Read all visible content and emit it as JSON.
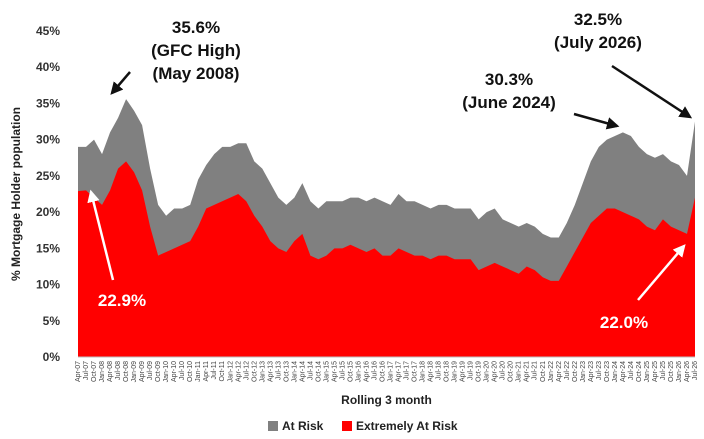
{
  "chart_data": {
    "type": "area",
    "stacked": false,
    "xlabel": "Rolling 3 month",
    "ylabel": "% Mortgage Holder population",
    "ylim": [
      0,
      45
    ],
    "yticks": [
      "0%",
      "5%",
      "10%",
      "15%",
      "20%",
      "25%",
      "30%",
      "35%",
      "40%",
      "45%"
    ],
    "ytick_values": [
      0,
      5,
      10,
      15,
      20,
      25,
      30,
      35,
      40,
      45
    ],
    "grid": false,
    "legend_position": "bottom",
    "x_tick_labels": [
      "Apr-07",
      "Jul-07",
      "Oct-07",
      "Jan-08",
      "Apr-08",
      "Jul-08",
      "Oct-08",
      "Jan-09",
      "Apr-09",
      "Jul-09",
      "Oct-09",
      "Jan-10",
      "Apr-10",
      "Jul-10",
      "Oct-10",
      "Jan-11",
      "Apr-11",
      "Jul-11",
      "Oct-11",
      "Jan-12",
      "Apr-12",
      "Jul-12",
      "Oct-12",
      "Jan-13",
      "Apr-13",
      "Jul-13",
      "Oct-13",
      "Jan-14",
      "Apr-14",
      "Jul-14",
      "Oct-14",
      "Jan-15",
      "Apr-15",
      "Jul-15",
      "Oct-15",
      "Jan-16",
      "Apr-16",
      "Jul-16",
      "Oct-16",
      "Jan-17",
      "Apr-17",
      "Jul-17",
      "Oct-17",
      "Jan-18",
      "Apr-18",
      "Jul-18",
      "Oct-18",
      "Jan-19",
      "Apr-19",
      "Jul-19",
      "Oct-19",
      "Jan-20",
      "Apr-20",
      "Jul-20",
      "Oct-20",
      "Jan-21",
      "Apr-21",
      "Jul-21",
      "Oct-21",
      "Jan-22",
      "Apr-22",
      "Jul-22",
      "Oct-22",
      "Jan-23",
      "Apr-23",
      "Jul-23",
      "Oct-23",
      "Jan-24",
      "Apr-24",
      "Jul-24",
      "Oct-24",
      "Jan-25",
      "Apr-25",
      "Jul-25",
      "Oct-25",
      "Jan-26",
      "Apr-26",
      "Jul-26"
    ],
    "series": [
      {
        "name": "At Risk",
        "color": "#808080",
        "values": [
          29,
          29,
          30,
          28,
          31,
          33,
          35.6,
          34,
          32,
          26,
          21,
          19.5,
          20.5,
          20.5,
          21,
          24.5,
          26.5,
          28,
          29,
          29,
          29.5,
          29.5,
          27,
          26,
          24,
          22,
          21,
          22,
          24,
          21.5,
          20.5,
          21.5,
          21.5,
          21.5,
          22,
          22,
          21.5,
          22,
          21.5,
          21,
          22.5,
          21.5,
          21.5,
          21,
          20.5,
          21,
          21,
          20.5,
          20.5,
          20.5,
          19,
          20,
          20.5,
          19,
          18.5,
          18,
          18.5,
          18,
          17,
          16.5,
          16.5,
          18.5,
          21,
          24,
          27,
          29,
          30,
          30.5,
          31,
          30.5,
          29,
          28,
          27.5,
          28,
          27,
          26.5,
          25,
          32.5
        ]
      },
      {
        "name": "Extremely At Risk",
        "color": "#ff0000",
        "values": [
          22.9,
          23,
          22,
          21,
          23,
          26,
          27,
          25.5,
          23,
          18,
          14,
          14.5,
          15,
          15.5,
          16,
          18,
          20.5,
          21,
          21.5,
          22,
          22.5,
          21.5,
          19.5,
          18,
          16,
          15,
          14.5,
          16,
          17,
          14,
          13.5,
          14,
          15,
          15,
          15.5,
          15,
          14.5,
          15,
          14,
          14,
          15,
          14.5,
          14,
          14,
          13.5,
          14,
          14,
          13.5,
          13.5,
          13.5,
          12,
          12.5,
          13,
          12.5,
          12,
          11.5,
          12.5,
          12,
          11,
          10.5,
          10.5,
          12.5,
          14.5,
          16.5,
          18.5,
          19.5,
          20.5,
          20.5,
          20,
          19.5,
          19,
          18,
          17.5,
          19,
          18,
          17.5,
          17,
          22.0
        ]
      }
    ],
    "annotations": [
      {
        "lines": [
          "35.6%",
          "(GFC High)",
          "(May 2008)"
        ]
      },
      {
        "lines": [
          "30.3%",
          "(June 2024)"
        ]
      },
      {
        "lines": [
          "32.5%",
          "(July 2026)"
        ]
      },
      {
        "lines": [
          "22.9%"
        ]
      },
      {
        "lines": [
          "22.0%"
        ]
      }
    ]
  }
}
